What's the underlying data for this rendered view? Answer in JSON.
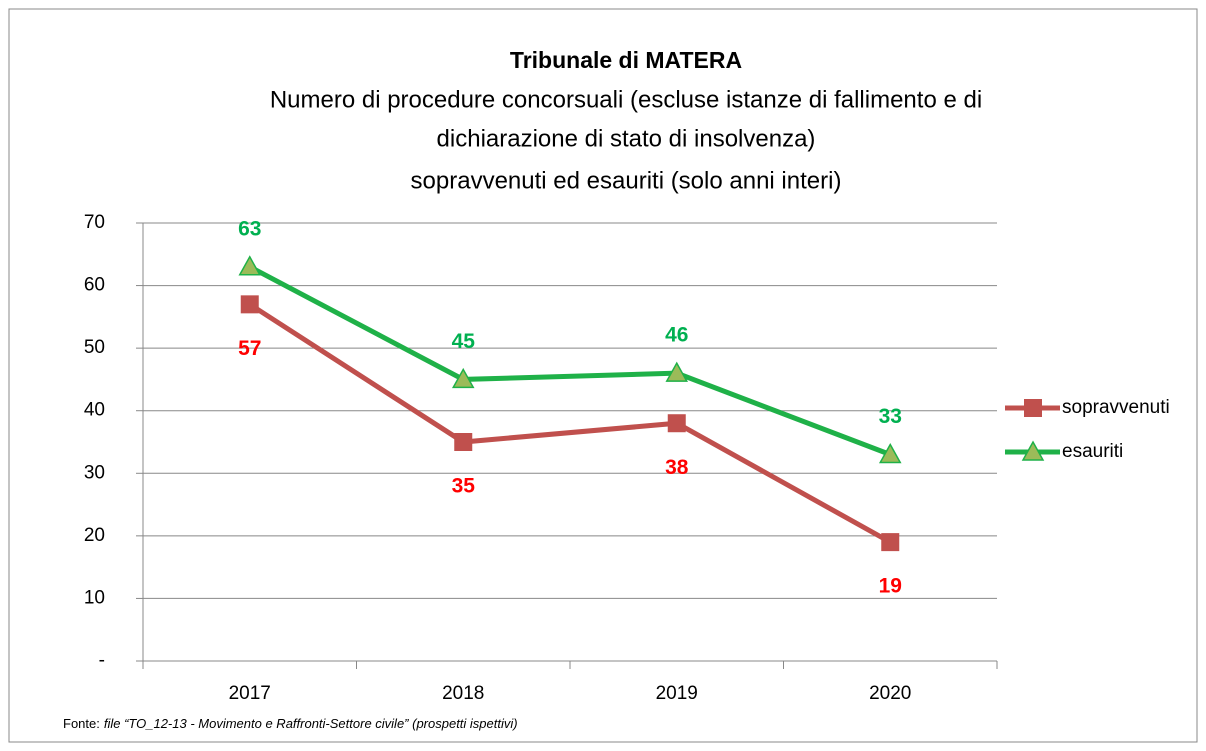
{
  "chart_data": {
    "type": "line",
    "title": "Tribunale di MATERA",
    "subtitle": [
      "Numero di procedure concorsuali (escluse istanze di fallimento e di",
      "dichiarazione di stato di insolvenza)",
      "sopravvenuti ed esauriti (solo anni interi)"
    ],
    "categories": [
      "2017",
      "2018",
      "2019",
      "2020"
    ],
    "series": [
      {
        "name": "sopravvenuti",
        "color": "#c0504d",
        "marker": "square",
        "label_color": "#ff0000",
        "label_position": "below",
        "values": [
          57,
          35,
          38,
          19
        ]
      },
      {
        "name": "esauriti",
        "color": "#1fb148",
        "marker": "triangle",
        "marker_color": "#9bbb59",
        "label_color": "#00b050",
        "label_position": "above",
        "values": [
          63,
          45,
          46,
          33
        ]
      }
    ],
    "ylim": [
      0,
      70
    ],
    "yticks": [
      {
        "value": 0,
        "label": "-"
      },
      10,
      20,
      30,
      40,
      50,
      60,
      70
    ],
    "grid": true,
    "legend": "right",
    "source_label": "Fonte:",
    "source": "file “TO_12-13 - Movimento e Raffronti-Settore civile” (prospetti ispettivi)"
  }
}
